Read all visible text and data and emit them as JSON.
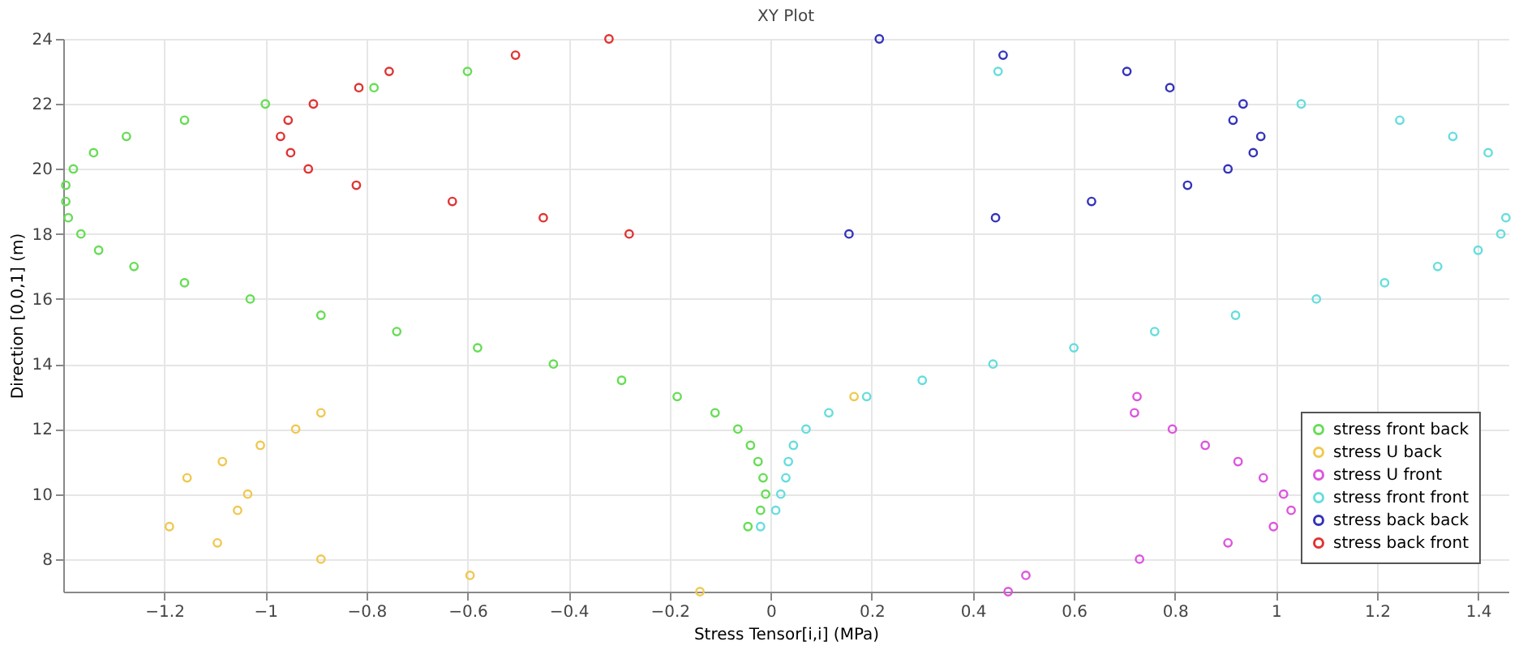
{
  "chart_data": {
    "type": "scatter",
    "title": "XY Plot",
    "xlabel": "Stress Tensor[i,i] (MPa)",
    "ylabel": "Direction [0,0,1] (m)",
    "xlim": [
      -1.4,
      1.46
    ],
    "xticks": [
      -1.2,
      -1,
      -0.8,
      -0.6,
      -0.4,
      -0.2,
      0,
      0.2,
      0.4,
      0.6,
      0.8,
      1,
      1.2,
      1.4
    ],
    "ylim": [
      7,
      24
    ],
    "yticks": [
      8,
      10,
      12,
      14,
      16,
      18,
      20,
      22,
      24
    ],
    "grid": true,
    "legend": "bottom right",
    "marker": "circle",
    "series": [
      {
        "name": "stress front back",
        "color": "#66dd55",
        "x": [
          -0.045,
          -0.02,
          -0.01,
          -0.015,
          -0.025,
          -0.04,
          -0.065,
          -0.11,
          -0.185,
          -0.295,
          -0.43,
          -0.58,
          -0.74,
          -0.89,
          -1.03,
          -1.16,
          -1.26,
          -1.33,
          -1.365,
          -1.39,
          -1.395,
          -1.395,
          -1.38,
          -1.34,
          -1.275,
          -1.16,
          -1.0,
          -0.785,
          -0.6
        ],
        "values": [
          9,
          9.5,
          10,
          10.5,
          11,
          11.5,
          12,
          12.5,
          13,
          13.5,
          14,
          14.5,
          15,
          15.5,
          16,
          16.5,
          17,
          17.5,
          18,
          18.5,
          19,
          19.5,
          20,
          20.5,
          21,
          21.5,
          22,
          22.5,
          23
        ]
      },
      {
        "name": "stress U back",
        "color": "#f0c850",
        "x": [
          -0.14,
          -0.595,
          -0.89,
          -1.095,
          -1.19,
          -1.055,
          -1.035,
          -1.155,
          -1.085,
          -1.01,
          -0.94,
          -0.89,
          0.165
        ],
        "values": [
          7,
          7.5,
          8,
          8.5,
          9,
          9.5,
          10,
          10.5,
          11,
          11.5,
          12,
          12.5,
          13
        ]
      },
      {
        "name": "stress U front",
        "color": "#dd55dd",
        "x": [
          0.47,
          0.505,
          0.73,
          0.905,
          0.995,
          1.03,
          1.015,
          0.975,
          0.925,
          0.86,
          0.795,
          0.72,
          0.725
        ],
        "values": [
          7,
          7.5,
          8,
          8.5,
          9,
          9.5,
          10,
          10.5,
          11,
          11.5,
          12,
          12.5,
          13
        ]
      },
      {
        "name": "stress front front",
        "color": "#66dddd",
        "x": [
          -0.02,
          0.01,
          0.02,
          0.03,
          0.035,
          0.045,
          0.07,
          0.115,
          0.19,
          0.3,
          0.44,
          0.6,
          0.76,
          0.92,
          1.08,
          1.215,
          1.32,
          1.4,
          1.445,
          1.455,
          1.42,
          1.35,
          1.245,
          1.05,
          0.45
        ],
        "values": [
          9,
          9.5,
          10,
          10.5,
          11,
          11.5,
          12,
          12.5,
          13,
          13.5,
          14,
          14.5,
          15,
          15.5,
          16,
          16.5,
          17,
          17.5,
          18,
          18.5,
          20.5,
          21,
          21.5,
          22,
          23
        ]
      },
      {
        "name": "stress back back",
        "color": "#3333bb",
        "x": [
          0.155,
          0.445,
          0.635,
          0.825,
          0.905,
          0.955,
          0.97,
          0.915,
          0.935,
          0.79,
          0.705,
          0.46,
          0.215
        ],
        "values": [
          18,
          18.5,
          19,
          19.5,
          20,
          20.5,
          21,
          21.5,
          22,
          22.5,
          23,
          23.5,
          24
        ]
      },
      {
        "name": "stress back front",
        "color": "#e03333",
        "x": [
          -0.28,
          -0.45,
          -0.63,
          -0.82,
          -0.915,
          -0.95,
          -0.97,
          -0.955,
          -0.905,
          -0.815,
          -0.755,
          -0.505,
          -0.32
        ],
        "values": [
          18,
          18.5,
          19,
          19.5,
          20,
          20.5,
          21,
          21.5,
          22,
          22.5,
          23,
          23.5,
          24
        ]
      }
    ]
  }
}
